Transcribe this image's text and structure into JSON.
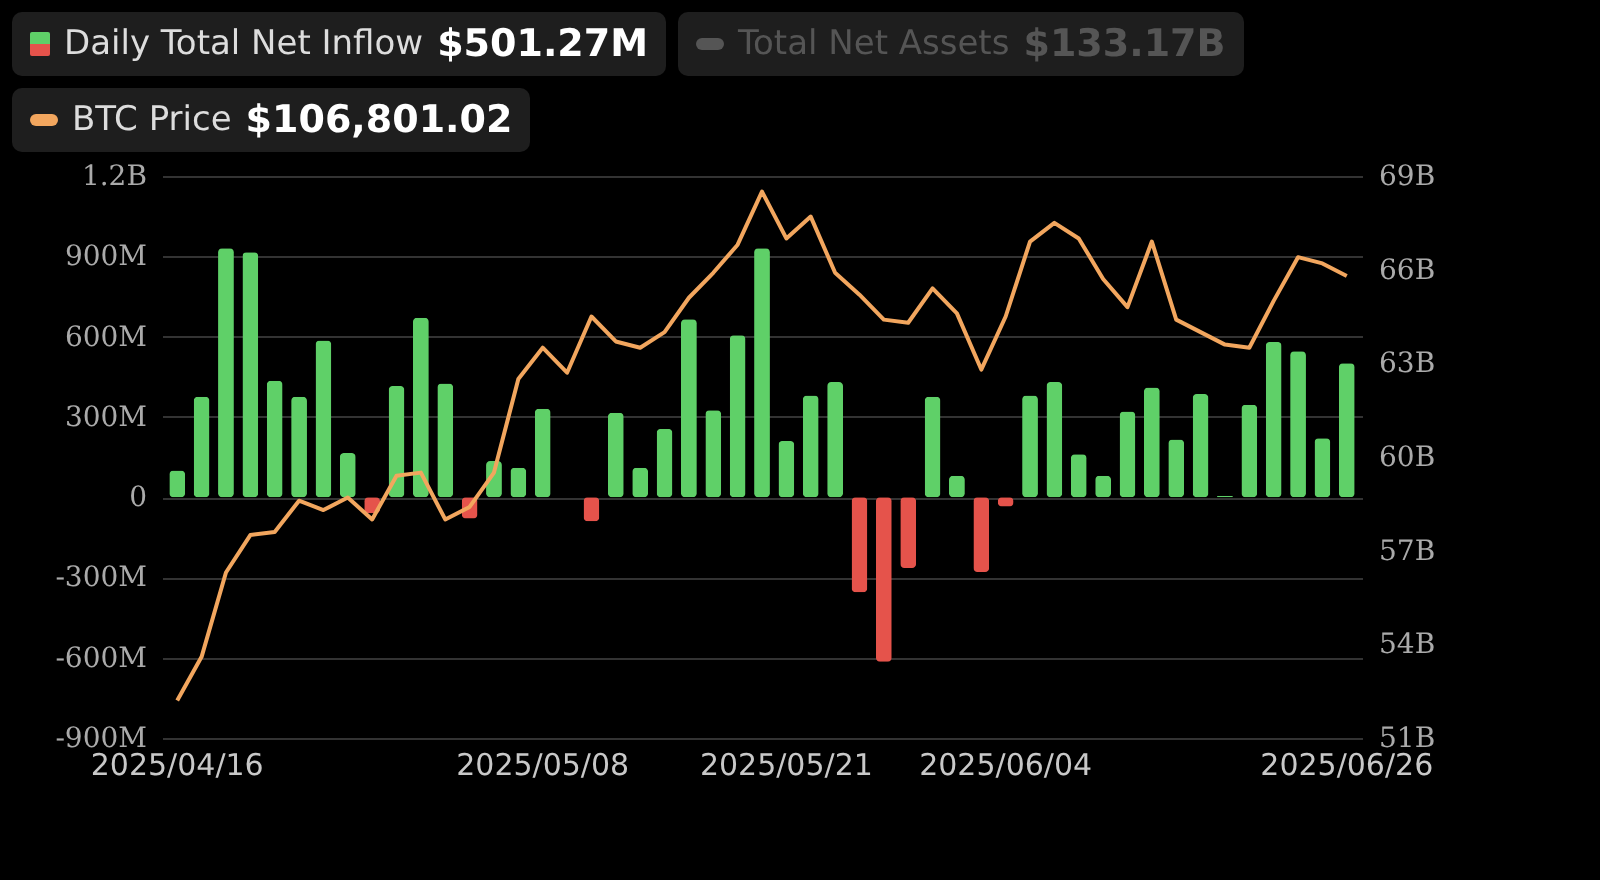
{
  "chart_data": {
    "type": "bar",
    "legend": "top left",
    "grid": "y",
    "categories": [
      "2025/04/16",
      null,
      null,
      null,
      null,
      null,
      null,
      null,
      null,
      null,
      null,
      null,
      null,
      null,
      null,
      "2025/05/08",
      null,
      null,
      null,
      null,
      null,
      null,
      null,
      null,
      null,
      "2025/05/21",
      null,
      null,
      null,
      null,
      null,
      null,
      null,
      null,
      "2025/06/04",
      null,
      null,
      null,
      null,
      null,
      null,
      null,
      null,
      null,
      null,
      null,
      null,
      null,
      "2025/06/26"
    ],
    "series": [
      {
        "name": "Daily Total Net Inflow",
        "color": "#5fd068",
        "colors": [
          "#5fd068",
          "#5fd068",
          "#5fd068",
          "#5fd068",
          "#5fd068",
          "#5fd068",
          "#5fd068",
          "#5fd068",
          "#e5534b",
          "#5fd068",
          "#5fd068",
          "#5fd068",
          "#e5534b",
          "#5fd068",
          "#5fd068",
          "#5fd068",
          "#5fd068",
          "#e5534b",
          "#5fd068",
          "#5fd068",
          "#5fd068",
          "#5fd068",
          "#5fd068",
          "#5fd068",
          "#5fd068",
          "#5fd068",
          "#5fd068",
          "#5fd068",
          "#e5534b",
          "#e5534b",
          "#e5534b",
          "#5fd068",
          "#5fd068",
          "#e5534b",
          "#e5534b",
          "#5fd068",
          "#5fd068",
          "#5fd068",
          "#5fd068",
          "#5fd068",
          "#5fd068",
          "#5fd068",
          "#5fd068",
          "#5fd068",
          "#5fd068",
          "#5fd068",
          "#5fd068",
          "#5fd068",
          "#5fd068"
        ],
        "values": [
          100000000.0,
          375000000.0,
          930000000.0,
          915000000.0,
          435000000.0,
          375000000.0,
          585000000.0,
          165000000.0,
          -60000000.0,
          415000000.0,
          670000000.0,
          425000000.0,
          -80000000.0,
          135000000.0,
          110000000.0,
          330000000.0,
          0,
          -90000000.0,
          315000000.0,
          110000000.0,
          255000000.0,
          665000000.0,
          325000000.0,
          605000000.0,
          930000000.0,
          210000000.0,
          380000000.0,
          430000000.0,
          -355000000.0,
          -615000000.0,
          -265000000.0,
          375000000.0,
          80000000.0,
          -280000000.0,
          -35000000.0,
          380000000.0,
          430000000.0,
          160000000.0,
          80000000.0,
          320000000.0,
          410000000.0,
          215000000.0,
          385000000.0,
          5000000.0,
          345000000.0,
          580000000.0,
          545000000.0,
          220000000.0,
          500000000.0
        ]
      },
      {
        "name": "Total Net Assets",
        "type": "line",
        "axis": "y2",
        "color": "#555555",
        "values": [
          null,
          null,
          null,
          null,
          null,
          null,
          null,
          null,
          null,
          null,
          null,
          null,
          null,
          null,
          null,
          null,
          null,
          null,
          null,
          null,
          null,
          null,
          null,
          null,
          null,
          null,
          null,
          null,
          null,
          null,
          null,
          null,
          null,
          null,
          null,
          null,
          null,
          null,
          null,
          null,
          null,
          null,
          null,
          null,
          null,
          null,
          null,
          null,
          null
        ]
      },
      {
        "name": "BTC Price",
        "type": "line",
        "axis": "y2",
        "color": "#f2a65e",
        "values": [
          52200000000.0,
          53600000000.0,
          56300000000.0,
          57500000000.0,
          57600000000.0,
          58600000000.0,
          58300000000.0,
          58700000000.0,
          58000000000.0,
          59400000000.0,
          59500000000.0,
          58000000000.0,
          58400000000.0,
          59500000000.0,
          62500000000.0,
          63500000000.0,
          62700000000.0,
          64500000000.0,
          63700000000.0,
          63500000000.0,
          64000000000.0,
          65100000000.0,
          65900000000.0,
          66800000000.0,
          68500000000.0,
          67000000000.0,
          67700000000.0,
          65900000000.0,
          65200000000.0,
          64400000000.0,
          64300000000.0,
          65400000000.0,
          64600000000.0,
          62800000000.0,
          64500000000.0,
          66900000000.0,
          67500000000.0,
          67000000000.0,
          65700000000.0,
          64800000000.0,
          66900000000.0,
          64400000000.0,
          64000000000.0,
          63600000000.0,
          63500000000.0,
          65000000000.0,
          66400000000.0,
          66200000000.0,
          65800000000.0
        ]
      }
    ],
    "ylim": [
      -900000000.0,
      1200000000.0
    ],
    "yticks": [
      {
        "value": -900000000.0,
        "label": "-900M"
      },
      {
        "value": -600000000.0,
        "label": "-600M"
      },
      {
        "value": -300000000.0,
        "label": "-300M"
      },
      0,
      {
        "value": 300000000.0,
        "label": "300M"
      },
      {
        "value": 600000000.0,
        "label": "600M"
      },
      {
        "value": 900000000.0,
        "label": "900M"
      },
      {
        "value": 1200000000.0,
        "label": "1.2B"
      }
    ],
    "y2lim": [
      51000000000.0,
      69000000000.0
    ],
    "y2ticks": [
      {
        "value": 51000000000.0,
        "label": "51B"
      },
      {
        "value": 54000000000.0,
        "label": "54B"
      },
      {
        "value": 57000000000.0,
        "label": "57B"
      },
      {
        "value": 60000000000.0,
        "label": "60B"
      },
      {
        "value": 63000000000.0,
        "label": "63B"
      },
      {
        "value": 66000000000.0,
        "label": "66B"
      },
      {
        "value": 69000000000.0,
        "label": "69B"
      }
    ],
    "annotations": [
      "$501.27M",
      "$133.17B",
      "$106,801.02"
    ]
  }
}
